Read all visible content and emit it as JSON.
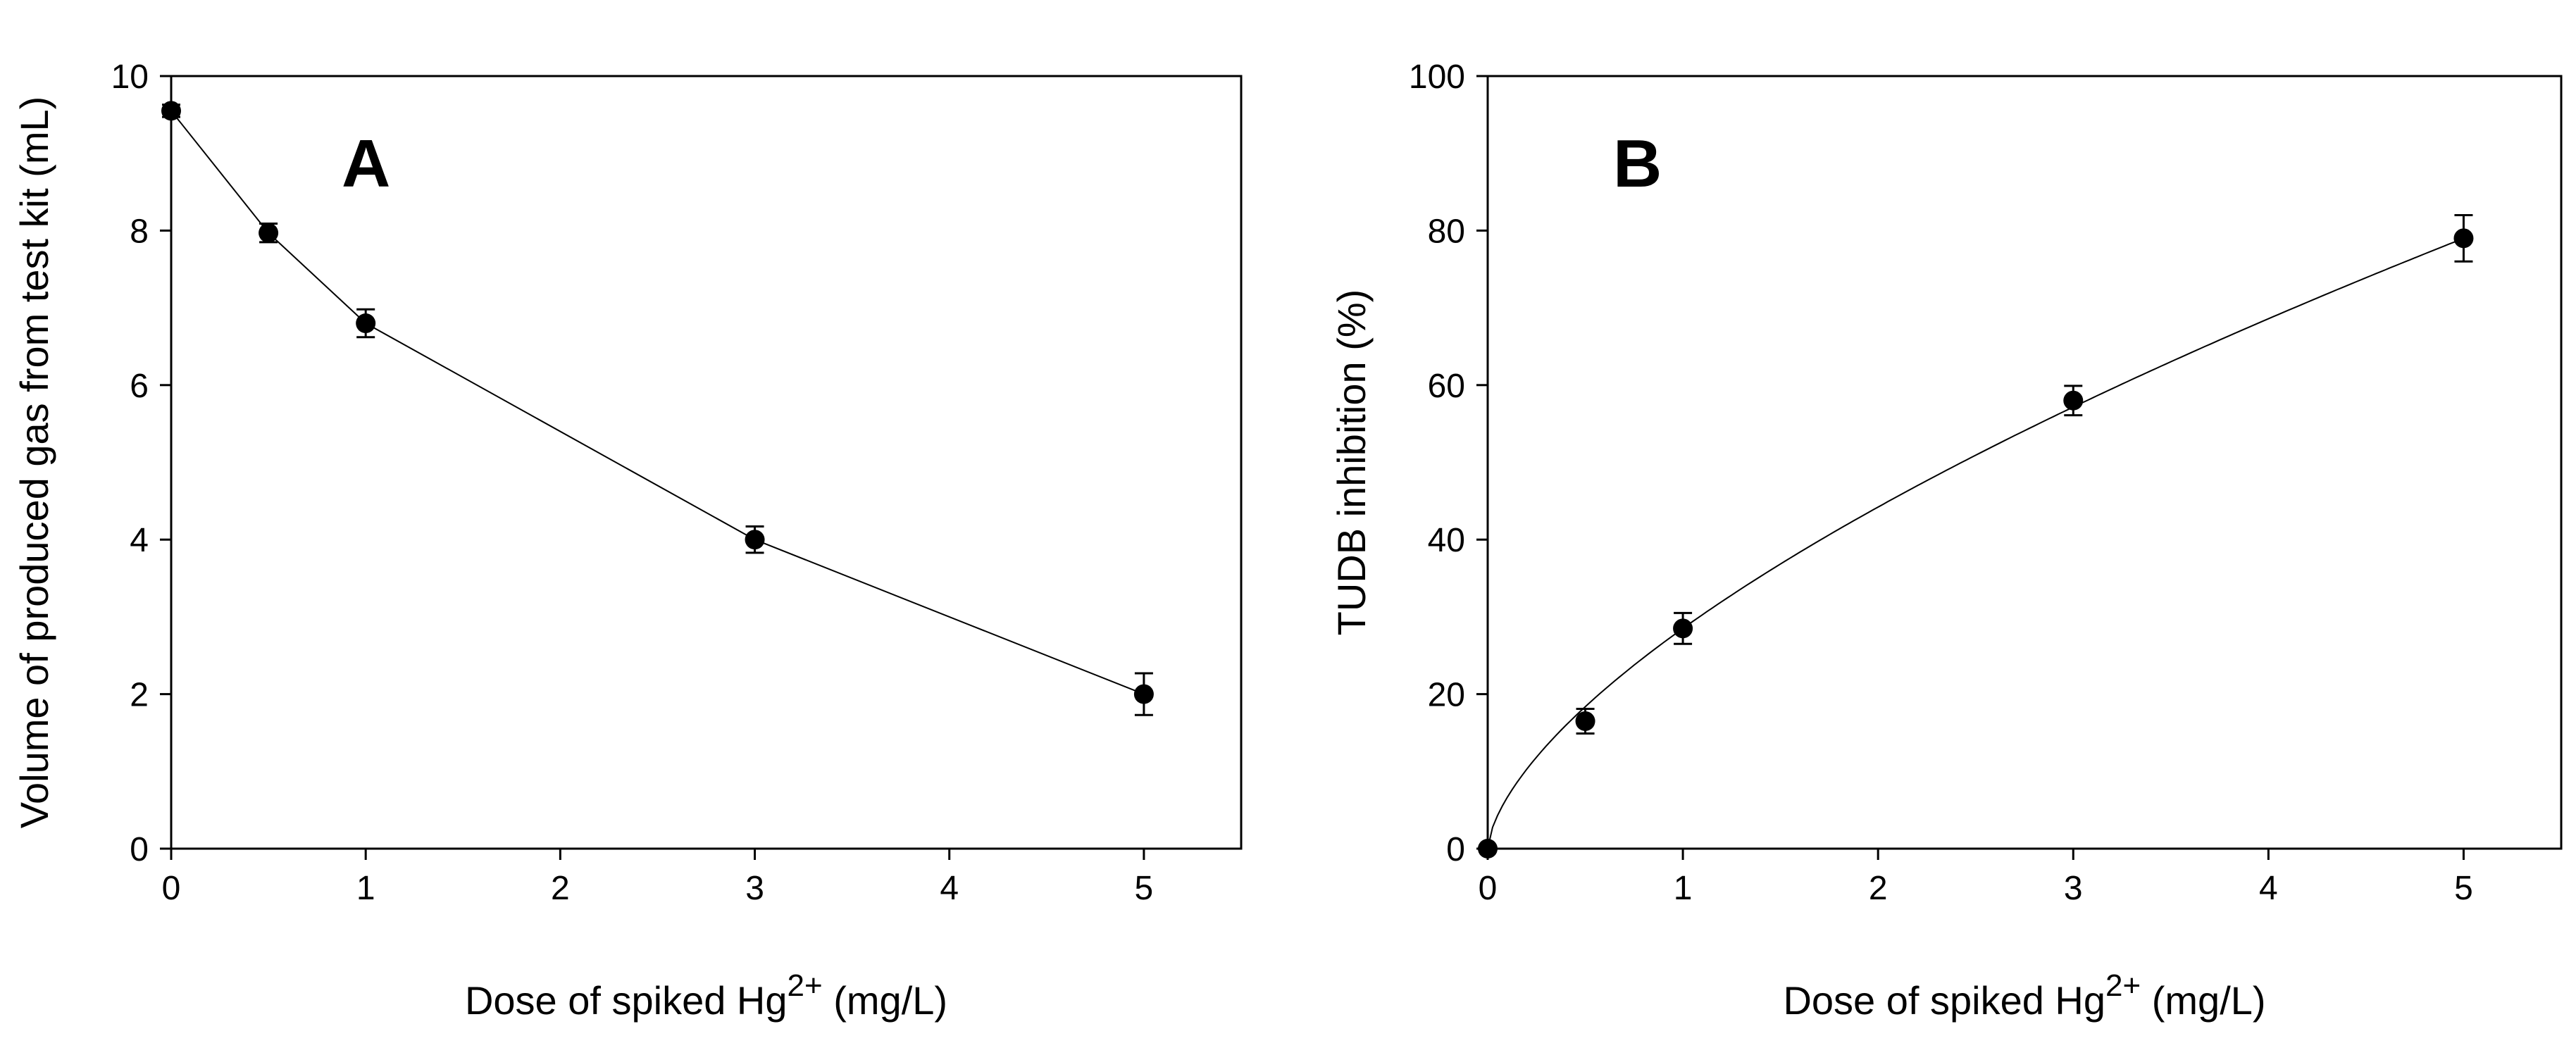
{
  "chart_data": [
    {
      "type": "line",
      "panel_label": "A",
      "xlabel": "Dose of spiked Hg",
      "xlabel_sup": "2+",
      "xlabel_unit": "(mg/L)",
      "ylabel": "Volume of produced gas from test kit (mL)",
      "xlim": [
        0,
        5.5
      ],
      "ylim": [
        0,
        10
      ],
      "xticks": [
        "0",
        "1",
        "2",
        "3",
        "4",
        "5"
      ],
      "yticks": [
        "0",
        "2",
        "4",
        "6",
        "8",
        "10"
      ],
      "series": [
        {
          "name": "Volume of produced gas",
          "x": [
            0,
            0.5,
            1,
            3,
            5
          ],
          "y": [
            9.55,
            7.97,
            6.8,
            4.0,
            2.0
          ],
          "error": [
            0.08,
            0.12,
            0.18,
            0.17,
            0.27
          ],
          "curve": "linear"
        }
      ]
    },
    {
      "type": "line",
      "panel_label": "B",
      "xlabel": "Dose of spiked Hg",
      "xlabel_sup": "2+",
      "xlabel_unit": "(mg/L)",
      "ylabel": "TUDB inhibition (%)",
      "xlim": [
        0,
        5.5
      ],
      "ylim": [
        0,
        100
      ],
      "xticks": [
        "0",
        "1",
        "2",
        "3",
        "4",
        "5"
      ],
      "yticks": [
        "0",
        "20",
        "40",
        "60",
        "80",
        "100"
      ],
      "series": [
        {
          "name": "TUDB inhibition",
          "x": [
            0,
            0.5,
            1,
            3,
            5
          ],
          "y": [
            0,
            16.5,
            28.5,
            58.0,
            79.0
          ],
          "error": [
            0,
            1.6,
            2.0,
            1.9,
            3.0
          ],
          "curve": "fit"
        }
      ]
    }
  ]
}
